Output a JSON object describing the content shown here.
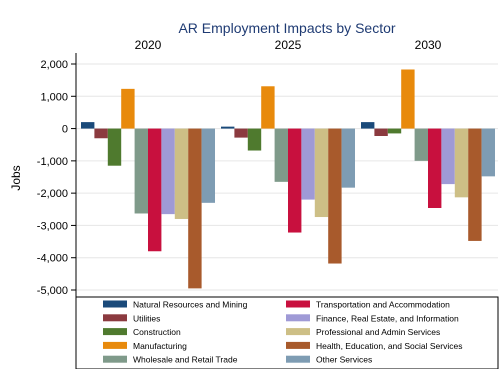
{
  "chart_data": {
    "type": "bar",
    "title": "AR Employment Impacts by Sector",
    "ylabel": "Jobs",
    "xlabel": "",
    "panels": [
      "2020",
      "2025",
      "2030"
    ],
    "y_ticks": [
      "2,000",
      "1,000",
      "0",
      "-1,000",
      "-2,000",
      "-3,000",
      "-4,000",
      "-5,000"
    ],
    "y_tick_values": [
      2000,
      1000,
      0,
      -1000,
      -2000,
      -3000,
      -4000,
      -5000
    ],
    "ylim": [
      -5200,
      2200
    ],
    "grid": true,
    "legend_position": "bottom",
    "series": [
      {
        "name": "Natural Resources and Mining",
        "color": "#1a4a7a",
        "values": [
          200,
          60,
          200
        ]
      },
      {
        "name": "Utilities",
        "color": "#8b3a3f",
        "values": [
          -300,
          -280,
          -230
        ]
      },
      {
        "name": "Construction",
        "color": "#4f7a2e",
        "values": [
          -1150,
          -680,
          -150
        ]
      },
      {
        "name": "Manufacturing",
        "color": "#e88a0c",
        "values": [
          1230,
          1310,
          1830
        ]
      },
      {
        "name": "Wholesale and Retail Trade",
        "color": "#7f9a8a",
        "values": [
          -2630,
          -1650,
          -1000
        ]
      },
      {
        "name": "Transportation and Accommodation",
        "color": "#c8103e",
        "values": [
          -3800,
          -3220,
          -2460
        ]
      },
      {
        "name": "Finance, Real Estate, and Information",
        "color": "#9f9ad6",
        "values": [
          -2650,
          -2200,
          -1720
        ]
      },
      {
        "name": "Professional and Admin Services",
        "color": "#cdbf86",
        "values": [
          -2800,
          -2740,
          -2130
        ]
      },
      {
        "name": "Health, Education, and Social Services",
        "color": "#a85a2c",
        "values": [
          -4950,
          -4180,
          -3480
        ]
      },
      {
        "name": "Other Services",
        "color": "#7e9cb3",
        "values": [
          -2300,
          -1830,
          -1480
        ]
      }
    ],
    "legend_order": [
      0,
      5,
      1,
      6,
      2,
      7,
      3,
      8,
      4,
      9
    ]
  }
}
